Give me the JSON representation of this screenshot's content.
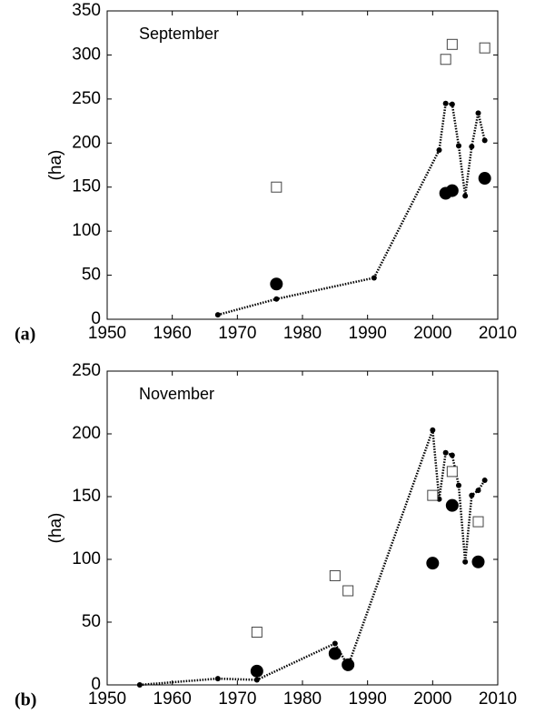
{
  "chart_data": [
    {
      "type": "line",
      "title": "September",
      "ylabel": "(ha)",
      "panel": "(a)",
      "xlim": [
        1950,
        2010
      ],
      "xticks": [
        1950,
        1960,
        1970,
        1980,
        1990,
        2000,
        2010
      ],
      "ylim": [
        0,
        350
      ],
      "yticks": [
        0,
        50,
        100,
        150,
        200,
        250,
        300,
        350
      ],
      "series": [
        {
          "color": "#000000",
          "marker": "dot",
          "line": "dotted",
          "x": [
            1967,
            1976,
            1991,
            2001,
            2002,
            2003,
            2004,
            2005,
            2006,
            2007,
            2008
          ],
          "values": [
            5,
            23,
            47,
            192,
            245,
            244,
            197,
            140,
            196,
            234,
            203
          ]
        },
        {
          "color": "#000000",
          "marker": "circle",
          "x": [
            1976,
            2002,
            2003,
            2008
          ],
          "values": [
            40,
            143,
            146,
            160
          ]
        },
        {
          "color": "#000000",
          "marker": "square",
          "x": [
            1976,
            2002,
            2003,
            2008
          ],
          "values": [
            150,
            295,
            312,
            308
          ]
        }
      ]
    },
    {
      "type": "line",
      "title": "November",
      "ylabel": "(ha)",
      "panel": "(b)",
      "xlim": [
        1950,
        2010
      ],
      "xticks": [
        1950,
        1960,
        1970,
        1980,
        1990,
        2000,
        2010
      ],
      "ylim": [
        0,
        250
      ],
      "yticks": [
        0,
        50,
        100,
        150,
        200,
        250
      ],
      "series": [
        {
          "color": "#000000",
          "marker": "dot",
          "line": "dotted",
          "x": [
            1955,
            1967,
            1973,
            1985,
            1987,
            2000,
            2001,
            2002,
            2003,
            2004,
            2005,
            2006,
            2007,
            2008
          ],
          "values": [
            0,
            5,
            4,
            33,
            15,
            203,
            148,
            185,
            183,
            159,
            98,
            151,
            155,
            163
          ]
        },
        {
          "color": "#000000",
          "marker": "circle",
          "x": [
            1973,
            1985,
            1987,
            2000,
            2003,
            2007
          ],
          "values": [
            11,
            25,
            16,
            97,
            143,
            98
          ]
        },
        {
          "color": "#000000",
          "marker": "square",
          "x": [
            1973,
            1985,
            1987,
            2000,
            2003,
            2007
          ],
          "values": [
            42,
            87,
            75,
            151,
            170,
            130
          ]
        }
      ]
    }
  ]
}
